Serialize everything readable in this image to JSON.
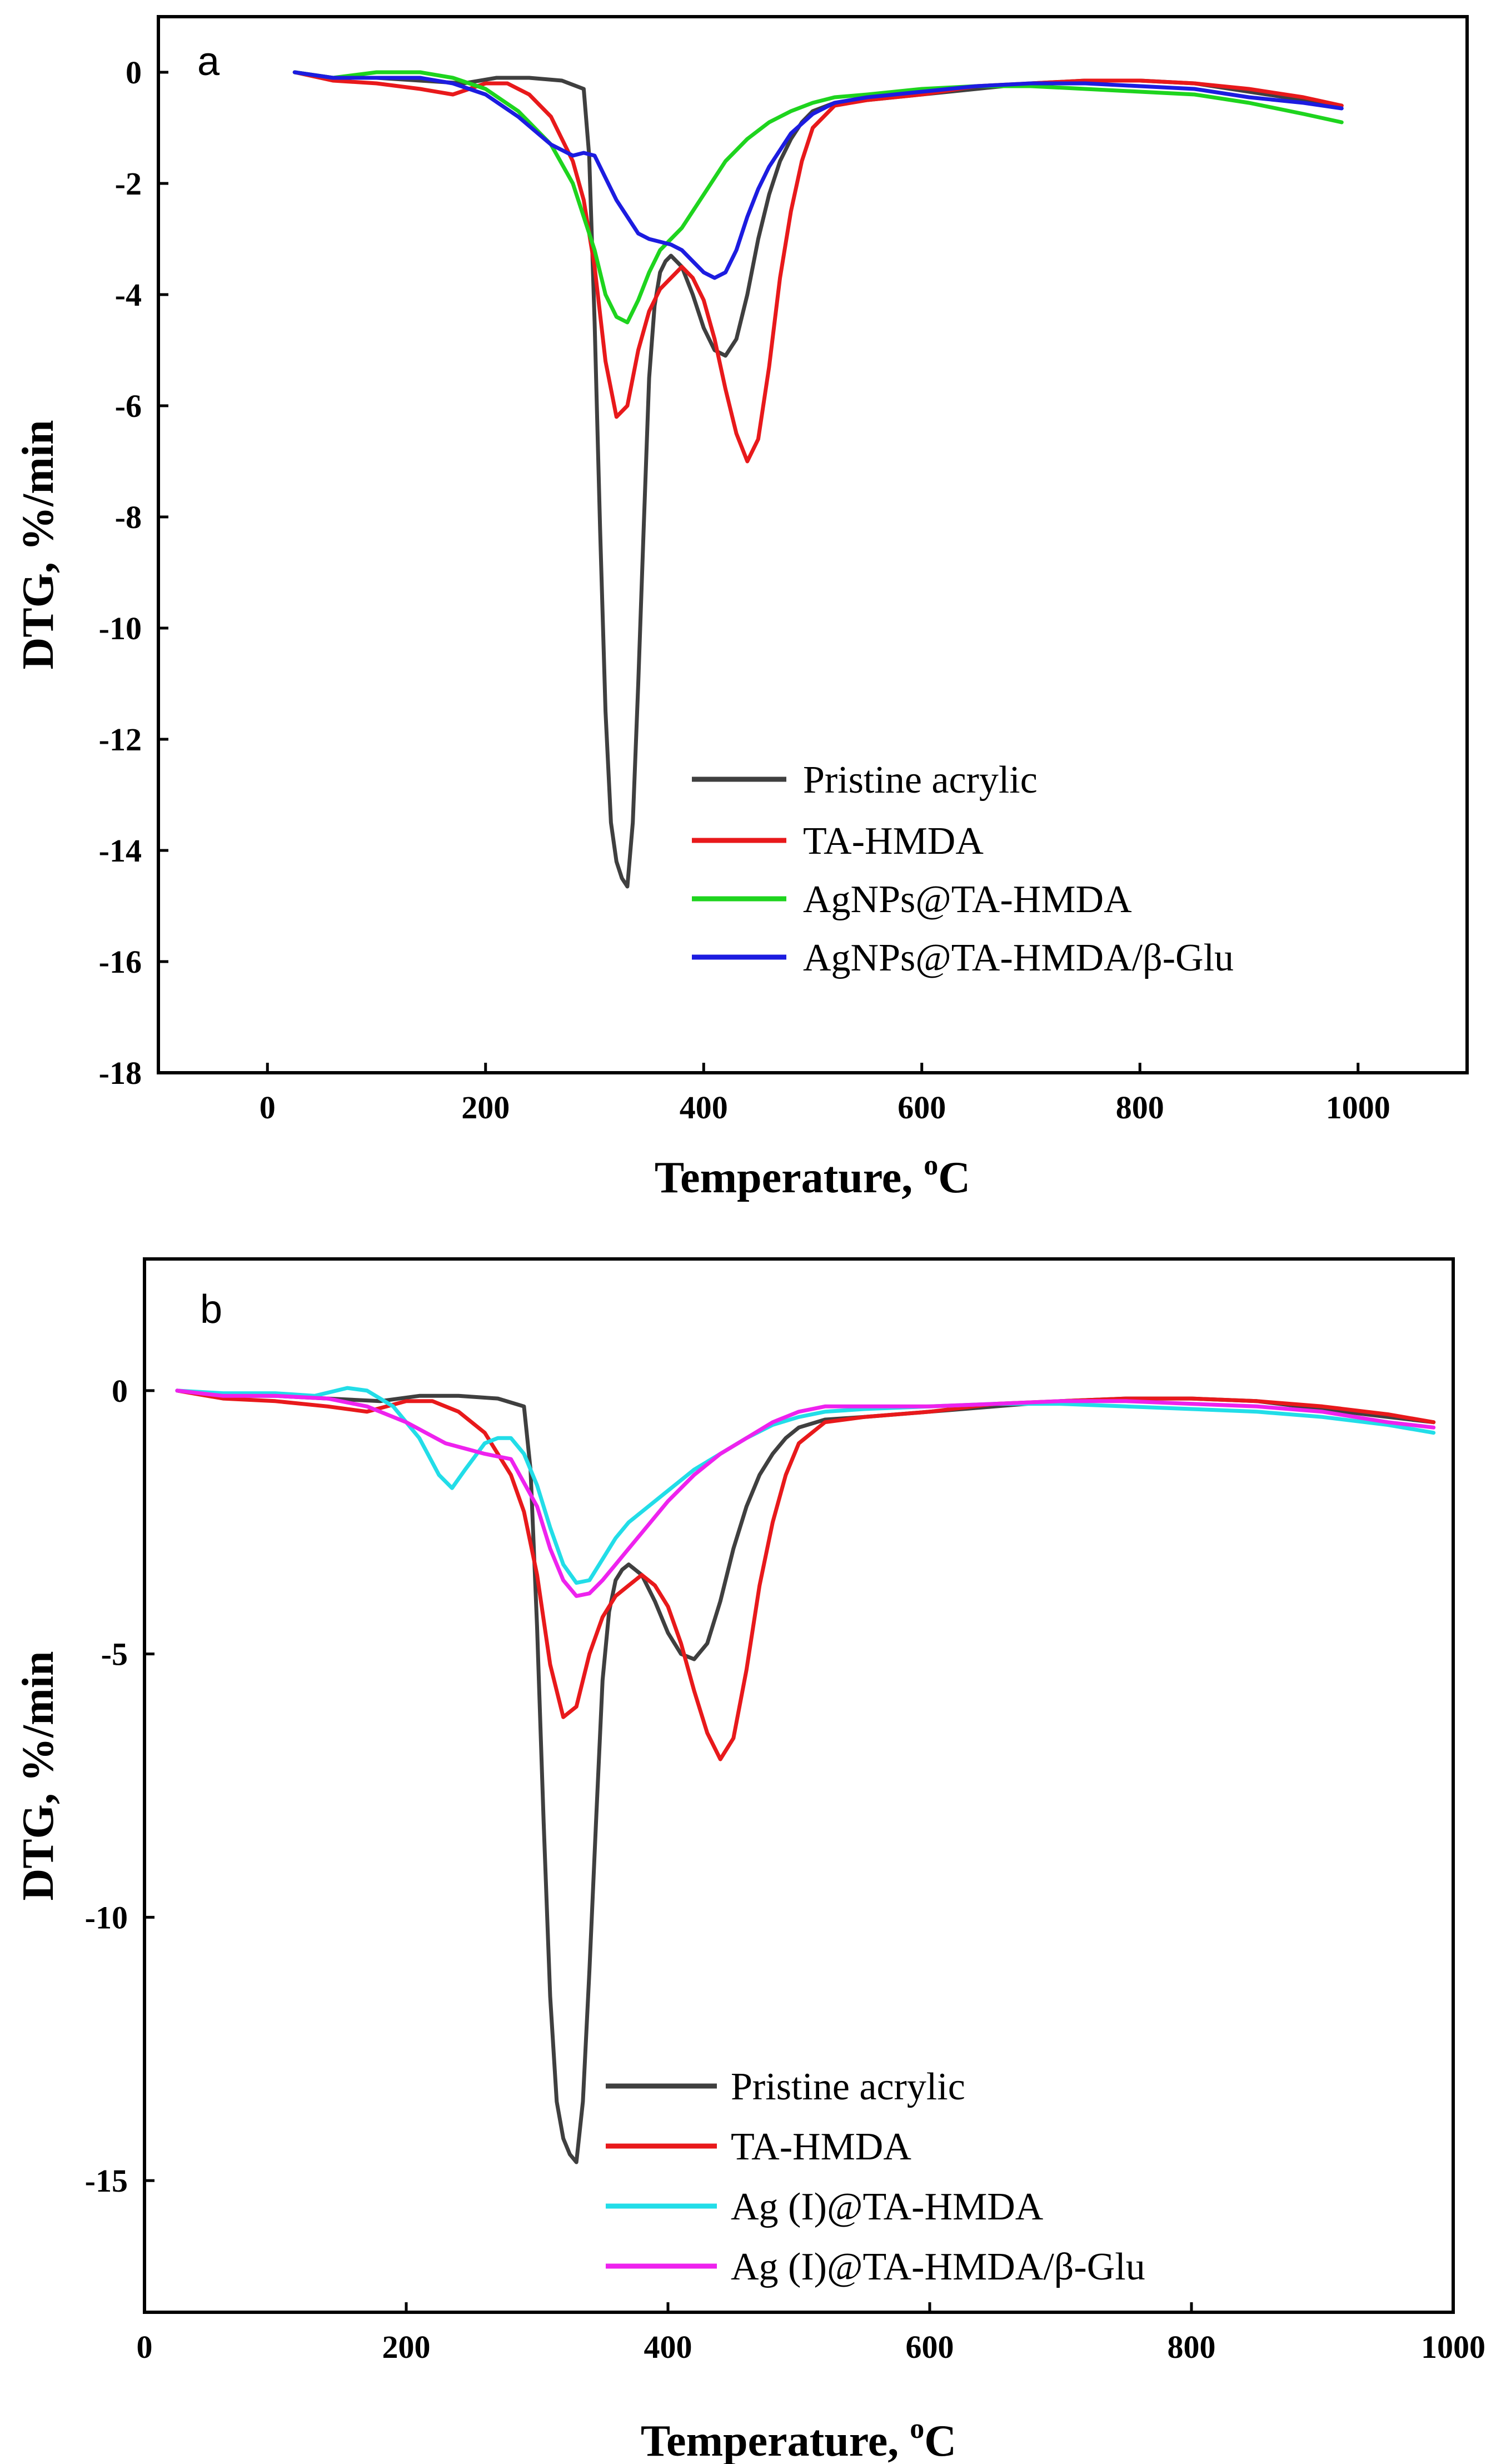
{
  "chart_data": [
    {
      "type": "line",
      "panel_label": "a",
      "xlabel": "Temperature, ",
      "xlabel_unit_sup": "o",
      "xlabel_unit": "C",
      "ylabel": "DTG, %/min",
      "xlim": [
        -100,
        1100
      ],
      "ylim": [
        -18,
        1
      ],
      "xticks": [
        0,
        200,
        400,
        600,
        800,
        1000
      ],
      "xtick_labels": [
        "0",
        "200",
        "400",
        "600",
        "800",
        "1000"
      ],
      "yticks": [
        0,
        -2,
        -4,
        -6,
        -8,
        -10,
        -12,
        -14,
        -16,
        -18
      ],
      "ytick_labels": [
        "0",
        "-2",
        "-4",
        "-6",
        "-8",
        "-10",
        "-12",
        "-14",
        "-16",
        "-18"
      ],
      "grid": false,
      "legend_position": "lower-right",
      "series": [
        {
          "name": "Pristine acrylic",
          "color": "#3f3f3f",
          "x": [
            25,
            60,
            100,
            140,
            180,
            210,
            240,
            270,
            290,
            295,
            300,
            305,
            310,
            315,
            320,
            325,
            330,
            335,
            340,
            345,
            350,
            355,
            360,
            365,
            370,
            380,
            390,
            400,
            410,
            420,
            430,
            440,
            450,
            460,
            470,
            480,
            490,
            500,
            520,
            550,
            600,
            650,
            700,
            750,
            800,
            850,
            900,
            950,
            985
          ],
          "y": [
            0,
            -0.1,
            -0.1,
            -0.15,
            -0.2,
            -0.1,
            -0.1,
            -0.15,
            -0.3,
            -1.5,
            -4.5,
            -8.2,
            -11.5,
            -13.5,
            -14.2,
            -14.5,
            -14.65,
            -13.5,
            -11,
            -8.2,
            -5.5,
            -4.2,
            -3.6,
            -3.4,
            -3.3,
            -3.5,
            -4.0,
            -4.6,
            -5.0,
            -5.1,
            -4.8,
            -4.0,
            -3.0,
            -2.2,
            -1.6,
            -1.2,
            -0.9,
            -0.7,
            -0.55,
            -0.5,
            -0.4,
            -0.3,
            -0.2,
            -0.15,
            -0.15,
            -0.2,
            -0.35,
            -0.5,
            -0.6
          ]
        },
        {
          "name": "TA-HMDA",
          "color": "#e8191b",
          "x": [
            25,
            60,
            100,
            140,
            170,
            200,
            220,
            240,
            260,
            280,
            290,
            300,
            310,
            320,
            330,
            340,
            350,
            360,
            370,
            380,
            390,
            400,
            410,
            420,
            430,
            440,
            450,
            460,
            470,
            480,
            490,
            500,
            520,
            550,
            600,
            650,
            700,
            750,
            800,
            850,
            900,
            950,
            985
          ],
          "y": [
            0,
            -0.15,
            -0.2,
            -0.3,
            -0.4,
            -0.2,
            -0.2,
            -0.4,
            -0.8,
            -1.6,
            -2.3,
            -3.5,
            -5.2,
            -6.2,
            -6.0,
            -5.0,
            -4.3,
            -3.9,
            -3.7,
            -3.5,
            -3.7,
            -4.1,
            -4.8,
            -5.7,
            -6.5,
            -7.0,
            -6.6,
            -5.3,
            -3.7,
            -2.5,
            -1.6,
            -1.0,
            -0.6,
            -0.5,
            -0.4,
            -0.25,
            -0.2,
            -0.15,
            -0.15,
            -0.2,
            -0.3,
            -0.45,
            -0.6
          ]
        },
        {
          "name": "AgNPs@TA-HMDA",
          "color": "#1ed41e",
          "x": [
            25,
            60,
            100,
            140,
            170,
            200,
            230,
            260,
            280,
            300,
            310,
            320,
            330,
            340,
            350,
            360,
            370,
            380,
            400,
            420,
            440,
            460,
            480,
            500,
            520,
            550,
            600,
            650,
            700,
            750,
            800,
            850,
            900,
            950,
            985
          ],
          "y": [
            0,
            -0.1,
            0,
            0,
            -0.1,
            -0.3,
            -0.7,
            -1.3,
            -2.0,
            -3.2,
            -4.0,
            -4.4,
            -4.5,
            -4.1,
            -3.6,
            -3.2,
            -3.0,
            -2.8,
            -2.2,
            -1.6,
            -1.2,
            -0.9,
            -0.7,
            -0.55,
            -0.45,
            -0.4,
            -0.3,
            -0.25,
            -0.25,
            -0.3,
            -0.35,
            -0.4,
            -0.55,
            -0.75,
            -0.9
          ]
        },
        {
          "name": "AgNPs@TA-HMDA/β-Glu",
          "color": "#1c1ce0",
          "x": [
            25,
            60,
            100,
            140,
            170,
            200,
            230,
            260,
            280,
            290,
            300,
            310,
            320,
            330,
            340,
            350,
            360,
            370,
            380,
            390,
            400,
            410,
            420,
            430,
            440,
            450,
            460,
            480,
            500,
            520,
            550,
            600,
            650,
            700,
            750,
            800,
            850,
            900,
            950,
            985
          ],
          "y": [
            0,
            -0.1,
            -0.1,
            -0.1,
            -0.2,
            -0.4,
            -0.8,
            -1.3,
            -1.5,
            -1.45,
            -1.5,
            -1.9,
            -2.3,
            -2.6,
            -2.9,
            -3.0,
            -3.05,
            -3.1,
            -3.2,
            -3.4,
            -3.6,
            -3.7,
            -3.6,
            -3.2,
            -2.6,
            -2.1,
            -1.7,
            -1.1,
            -0.75,
            -0.55,
            -0.45,
            -0.35,
            -0.25,
            -0.2,
            -0.2,
            -0.25,
            -0.3,
            -0.45,
            -0.55,
            -0.65
          ]
        }
      ]
    },
    {
      "type": "line",
      "panel_label": "b",
      "xlabel": "Temperature, ",
      "xlabel_unit_sup": "o",
      "xlabel_unit": "C",
      "ylabel": "DTG, %/min",
      "xlim": [
        0,
        1000
      ],
      "ylim": [
        -17.5,
        2.5
      ],
      "xticks": [
        0,
        200,
        400,
        600,
        800,
        1000
      ],
      "xtick_labels": [
        "0",
        "200",
        "400",
        "600",
        "800",
        "1000"
      ],
      "yticks": [
        0,
        -5,
        -10,
        -15
      ],
      "ytick_labels": [
        "0",
        "-5",
        "-10",
        "-15"
      ],
      "grid": false,
      "legend_position": "lower-right",
      "series": [
        {
          "name": "Pristine acrylic",
          "color": "#3f3f3f",
          "x": [
            25,
            60,
            100,
            140,
            180,
            210,
            240,
            270,
            290,
            295,
            300,
            305,
            310,
            315,
            320,
            325,
            330,
            335,
            340,
            345,
            350,
            355,
            360,
            365,
            370,
            380,
            390,
            400,
            410,
            420,
            430,
            440,
            450,
            460,
            470,
            480,
            490,
            500,
            520,
            550,
            600,
            650,
            700,
            750,
            800,
            850,
            900,
            950,
            985
          ],
          "y": [
            0,
            -0.1,
            -0.1,
            -0.15,
            -0.2,
            -0.1,
            -0.1,
            -0.15,
            -0.3,
            -1.5,
            -4.5,
            -8.2,
            -11.5,
            -13.5,
            -14.2,
            -14.5,
            -14.65,
            -13.5,
            -11,
            -8.2,
            -5.5,
            -4.2,
            -3.6,
            -3.4,
            -3.3,
            -3.5,
            -4.0,
            -4.6,
            -5.0,
            -5.1,
            -4.8,
            -4.0,
            -3.0,
            -2.2,
            -1.6,
            -1.2,
            -0.9,
            -0.7,
            -0.55,
            -0.5,
            -0.4,
            -0.3,
            -0.2,
            -0.15,
            -0.15,
            -0.2,
            -0.35,
            -0.5,
            -0.6
          ]
        },
        {
          "name": "TA-HMDA",
          "color": "#e8191b",
          "x": [
            25,
            60,
            100,
            140,
            170,
            200,
            220,
            240,
            260,
            280,
            290,
            300,
            310,
            320,
            330,
            340,
            350,
            360,
            370,
            380,
            390,
            400,
            410,
            420,
            430,
            440,
            450,
            460,
            470,
            480,
            490,
            500,
            520,
            550,
            600,
            650,
            700,
            750,
            800,
            850,
            900,
            950,
            985
          ],
          "y": [
            0,
            -0.15,
            -0.2,
            -0.3,
            -0.4,
            -0.2,
            -0.2,
            -0.4,
            -0.8,
            -1.6,
            -2.3,
            -3.5,
            -5.2,
            -6.2,
            -6.0,
            -5.0,
            -4.3,
            -3.9,
            -3.7,
            -3.5,
            -3.7,
            -4.1,
            -4.8,
            -5.7,
            -6.5,
            -7.0,
            -6.6,
            -5.3,
            -3.7,
            -2.5,
            -1.6,
            -1.0,
            -0.6,
            -0.5,
            -0.4,
            -0.25,
            -0.2,
            -0.15,
            -0.15,
            -0.2,
            -0.3,
            -0.45,
            -0.6
          ]
        },
        {
          "name": "Ag (I)@TA-HMDA",
          "color": "#22dde8",
          "x": [
            25,
            60,
            100,
            130,
            155,
            170,
            190,
            210,
            225,
            235,
            245,
            260,
            270,
            280,
            290,
            300,
            310,
            320,
            330,
            340,
            350,
            360,
            370,
            380,
            400,
            420,
            440,
            460,
            480,
            500,
            520,
            550,
            600,
            650,
            700,
            750,
            800,
            850,
            900,
            950,
            985
          ],
          "y": [
            0,
            -0.05,
            -0.05,
            -0.1,
            0.05,
            0,
            -0.3,
            -0.9,
            -1.6,
            -1.85,
            -1.5,
            -1.0,
            -0.9,
            -0.9,
            -1.2,
            -1.8,
            -2.6,
            -3.3,
            -3.65,
            -3.6,
            -3.2,
            -2.8,
            -2.5,
            -2.3,
            -1.9,
            -1.5,
            -1.2,
            -0.9,
            -0.65,
            -0.5,
            -0.4,
            -0.35,
            -0.3,
            -0.25,
            -0.25,
            -0.3,
            -0.35,
            -0.4,
            -0.5,
            -0.65,
            -0.8
          ]
        },
        {
          "name": "Ag (I)@TA-HMDA/β-Glu",
          "color": "#ee22ee",
          "x": [
            25,
            60,
            100,
            140,
            170,
            200,
            230,
            260,
            280,
            300,
            310,
            320,
            330,
            340,
            350,
            360,
            370,
            380,
            400,
            420,
            440,
            460,
            480,
            500,
            520,
            550,
            600,
            650,
            700,
            750,
            800,
            850,
            900,
            950,
            985
          ],
          "y": [
            0,
            -0.1,
            -0.1,
            -0.15,
            -0.3,
            -0.6,
            -1.0,
            -1.2,
            -1.3,
            -2.2,
            -3.0,
            -3.6,
            -3.9,
            -3.85,
            -3.6,
            -3.3,
            -3.0,
            -2.7,
            -2.1,
            -1.6,
            -1.2,
            -0.9,
            -0.6,
            -0.4,
            -0.3,
            -0.3,
            -0.3,
            -0.25,
            -0.2,
            -0.2,
            -0.25,
            -0.3,
            -0.4,
            -0.6,
            -0.7
          ]
        }
      ]
    }
  ]
}
